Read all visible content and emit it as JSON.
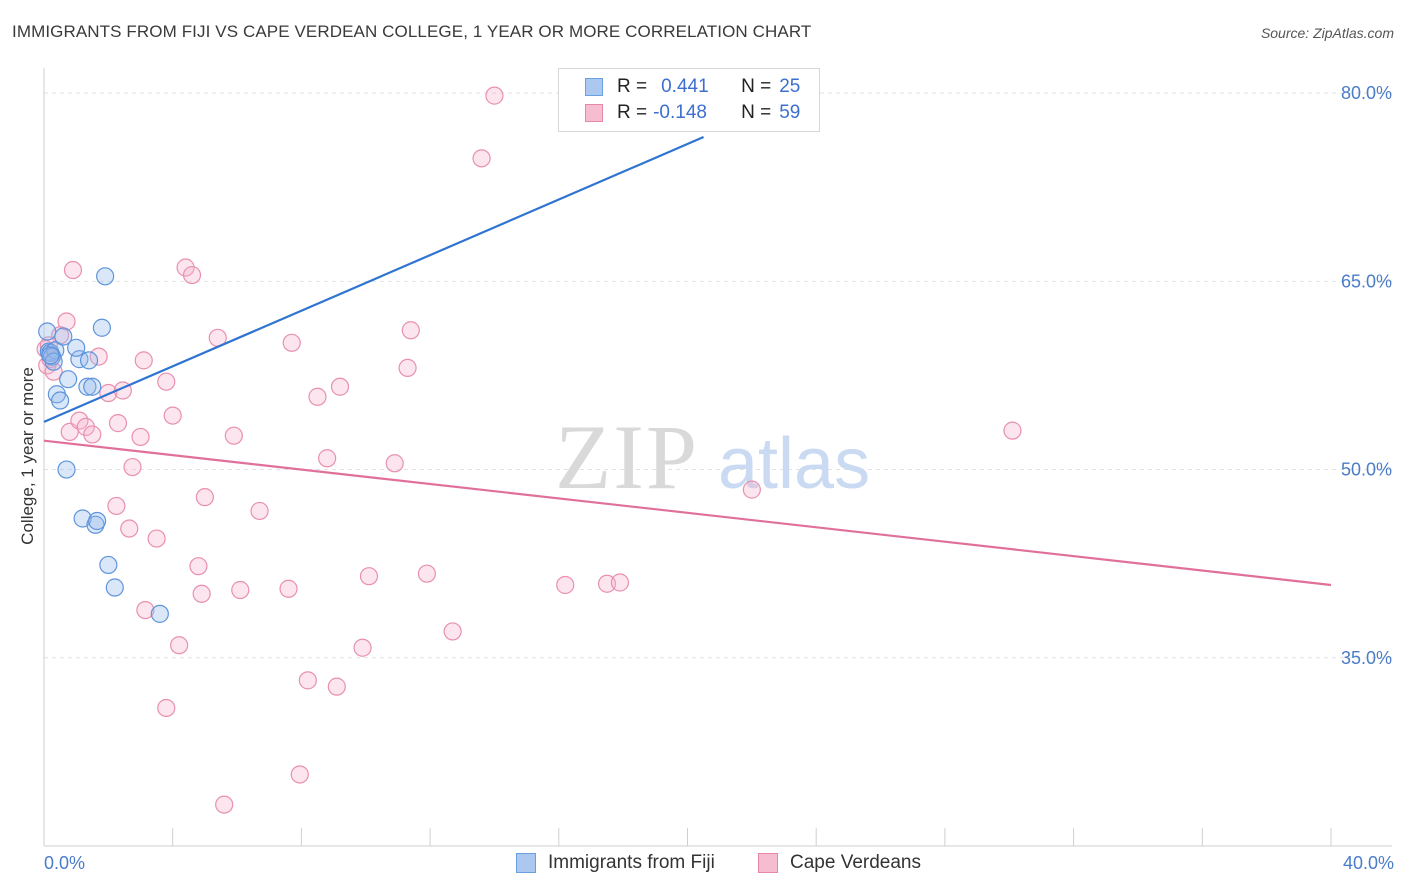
{
  "header": {
    "title": "IMMIGRANTS FROM FIJI VS CAPE VERDEAN COLLEGE, 1 YEAR OR MORE CORRELATION CHART",
    "source": "Source: ZipAtlas.com"
  },
  "watermark": {
    "zip": "ZIP",
    "atlas": "atlas"
  },
  "legend": {
    "r_label": "R =",
    "n_label": "N =",
    "series": [
      {
        "name": "Immigrants from Fiji",
        "r": "0.441",
        "n": "25",
        "fill": "#aac8f0",
        "stroke": "#6a9fe0"
      },
      {
        "name": "Cape Verdeans",
        "r": "-0.148",
        "n": "59",
        "fill": "#f6bcd0",
        "stroke": "#e888a8"
      }
    ]
  },
  "colors": {
    "fiji_line": "#2f74d0",
    "cape_line": "#e0709a",
    "fiji_point_fill": "rgba(150,185,235,0.35)",
    "fiji_point_stroke": "#5f94dc",
    "cape_point_fill": "rgba(246,180,205,0.35)",
    "cape_point_stroke": "#e890ae",
    "grid": "#e2e2e2",
    "tick_text": "#4a7cc8"
  },
  "chart_data": {
    "type": "scatter",
    "title": "IMMIGRANTS FROM FIJI VS CAPE VERDEAN COLLEGE, 1 YEAR OR MORE CORRELATION CHART",
    "xlabel": "",
    "ylabel": "College, 1 year or more",
    "xlim": [
      0,
      40
    ],
    "ylim": [
      20,
      82
    ],
    "x_tick_labels": [
      "0.0%",
      "40.0%"
    ],
    "y_ticks": [
      {
        "value": 35,
        "label": "35.0%"
      },
      {
        "value": 50,
        "label": "50.0%"
      },
      {
        "value": 65,
        "label": "65.0%"
      },
      {
        "value": 80,
        "label": "80.0%"
      }
    ],
    "x_minor_ticks": [
      0,
      4,
      8,
      12,
      16,
      20,
      24,
      28,
      32,
      36,
      40
    ],
    "series": [
      {
        "name": "Immigrants from Fiji",
        "r": 0.441,
        "n": 25,
        "trend": {
          "x0": 0,
          "y0": 53.8,
          "x1": 20.5,
          "y1": 76.5
        },
        "points": [
          [
            0.1,
            61.0
          ],
          [
            0.15,
            59.4
          ],
          [
            0.2,
            59.3
          ],
          [
            0.35,
            59.5
          ],
          [
            0.4,
            56.0
          ],
          [
            0.5,
            55.5
          ],
          [
            0.6,
            60.6
          ],
          [
            0.7,
            50.0
          ],
          [
            0.75,
            57.2
          ],
          [
            1.1,
            58.8
          ],
          [
            1.0,
            59.7
          ],
          [
            1.2,
            46.1
          ],
          [
            1.35,
            56.6
          ],
          [
            1.5,
            56.6
          ],
          [
            1.4,
            58.7
          ],
          [
            1.6,
            45.6
          ],
          [
            1.65,
            45.9
          ],
          [
            1.8,
            61.3
          ],
          [
            1.9,
            65.4
          ],
          [
            2.0,
            42.4
          ],
          [
            2.2,
            40.6
          ],
          [
            3.6,
            38.5
          ],
          [
            0.25,
            59.0
          ],
          [
            0.3,
            58.6
          ],
          [
            0.2,
            59.1
          ]
        ]
      },
      {
        "name": "Cape Verdeans",
        "r": -0.148,
        "n": 59,
        "trend": {
          "x0": 0,
          "y0": 52.3,
          "x1": 40,
          "y1": 40.8
        },
        "points": [
          [
            0.05,
            59.6
          ],
          [
            0.1,
            58.3
          ],
          [
            0.2,
            58.8
          ],
          [
            0.3,
            57.8
          ],
          [
            0.5,
            60.7
          ],
          [
            0.7,
            61.8
          ],
          [
            0.9,
            65.9
          ],
          [
            0.8,
            53.0
          ],
          [
            1.1,
            53.9
          ],
          [
            1.3,
            53.4
          ],
          [
            1.5,
            52.8
          ],
          [
            1.7,
            59.0
          ],
          [
            2.0,
            56.1
          ],
          [
            2.25,
            47.1
          ],
          [
            2.3,
            53.7
          ],
          [
            2.45,
            56.3
          ],
          [
            2.65,
            45.3
          ],
          [
            2.75,
            50.2
          ],
          [
            3.0,
            52.6
          ],
          [
            3.1,
            58.7
          ],
          [
            3.15,
            38.8
          ],
          [
            3.5,
            44.5
          ],
          [
            3.8,
            57.0
          ],
          [
            4.0,
            54.3
          ],
          [
            4.2,
            36.0
          ],
          [
            3.8,
            31.0
          ],
          [
            4.4,
            66.1
          ],
          [
            4.6,
            65.5
          ],
          [
            4.8,
            42.3
          ],
          [
            4.9,
            40.1
          ],
          [
            5.0,
            47.8
          ],
          [
            5.4,
            60.5
          ],
          [
            5.6,
            23.3
          ],
          [
            5.9,
            52.7
          ],
          [
            6.1,
            40.4
          ],
          [
            6.7,
            46.7
          ],
          [
            7.6,
            40.5
          ],
          [
            7.7,
            60.1
          ],
          [
            7.95,
            25.7
          ],
          [
            8.2,
            33.2
          ],
          [
            8.5,
            55.8
          ],
          [
            8.8,
            50.9
          ],
          [
            9.1,
            32.7
          ],
          [
            9.2,
            56.6
          ],
          [
            9.9,
            35.8
          ],
          [
            10.1,
            41.5
          ],
          [
            10.9,
            50.5
          ],
          [
            11.3,
            58.1
          ],
          [
            11.4,
            61.1
          ],
          [
            11.9,
            41.7
          ],
          [
            12.7,
            37.1
          ],
          [
            13.6,
            74.8
          ],
          [
            14.0,
            79.8
          ],
          [
            16.2,
            40.8
          ],
          [
            17.5,
            40.9
          ],
          [
            17.9,
            41.0
          ],
          [
            22.0,
            48.4
          ],
          [
            30.1,
            53.1
          ],
          [
            0.15,
            59.9
          ]
        ]
      }
    ]
  }
}
